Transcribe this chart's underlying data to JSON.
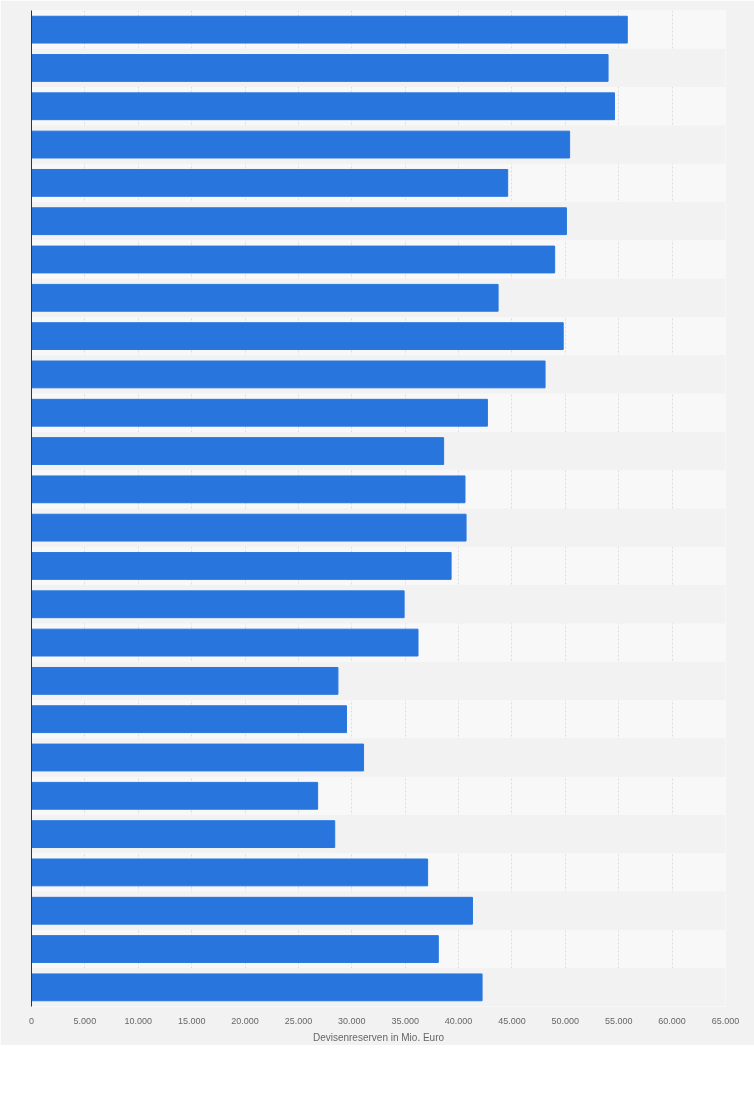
{
  "chart_data": {
    "type": "bar",
    "orientation": "horizontal",
    "xlabel": "Devisenreserven in Mio. Euro",
    "categories": [
      null,
      null,
      null,
      null,
      null,
      null,
      null,
      null,
      null,
      null,
      null,
      null,
      null,
      null,
      null,
      null,
      null,
      null,
      null,
      null,
      null,
      null,
      null,
      null,
      null,
      null
    ],
    "values": [
      55800,
      54000,
      54600,
      50400,
      44600,
      50100,
      49000,
      43700,
      49800,
      48100,
      42700,
      38600,
      40600,
      40700,
      39300,
      34900,
      36200,
      28700,
      29500,
      31100,
      26800,
      28400,
      37100,
      41300,
      38100,
      42200
    ],
    "color": "#2876dd",
    "xlim": [
      0,
      65000
    ],
    "xticks": [
      {
        "value": 0,
        "label": "0"
      },
      {
        "value": 5000,
        "label": "5.000"
      },
      {
        "value": 10000,
        "label": "10.000"
      },
      {
        "value": 15000,
        "label": "15.000"
      },
      {
        "value": 20000,
        "label": "20.000"
      },
      {
        "value": 25000,
        "label": "25.000"
      },
      {
        "value": 30000,
        "label": "30.000"
      },
      {
        "value": 35000,
        "label": "35.000"
      },
      {
        "value": 40000,
        "label": "40.000"
      },
      {
        "value": 45000,
        "label": "45.000"
      },
      {
        "value": 50000,
        "label": "50.000"
      },
      {
        "value": 55000,
        "label": "55.000"
      },
      {
        "value": 60000,
        "label": "60.000"
      },
      {
        "value": 65000,
        "label": "65.000"
      }
    ],
    "grid": "x",
    "tick_labels": "x"
  }
}
